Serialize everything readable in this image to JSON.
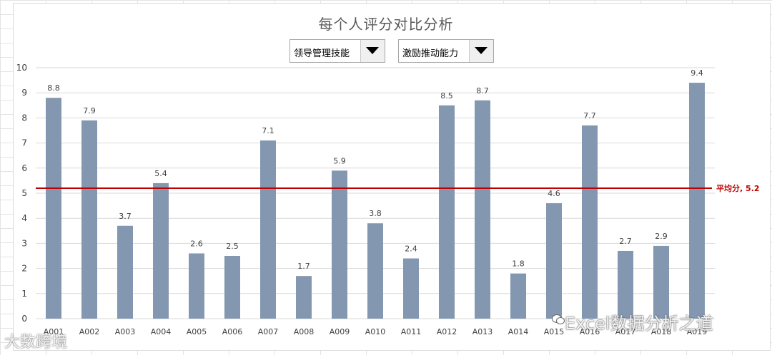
{
  "chart": {
    "title": "每个人评分对比分析"
  },
  "dropdowns": [
    {
      "selected": "领导管理技能"
    },
    {
      "selected": "激励推动能力"
    }
  ],
  "watermarks": {
    "main": "Excel数据分析之道",
    "corner": "大数跨境"
  },
  "colors": {
    "bar": "#8497b0",
    "average_line": "#c00000",
    "title": "#595959",
    "axis_text": "#404040"
  },
  "chart_data": {
    "type": "bar",
    "title": "每个人评分对比分析",
    "xlabel": "",
    "ylabel": "",
    "categories": [
      "A001",
      "A002",
      "A003",
      "A004",
      "A005",
      "A006",
      "A007",
      "A008",
      "A009",
      "A010",
      "A011",
      "A012",
      "A013",
      "A014",
      "A015",
      "A016",
      "A017",
      "A018",
      "A019"
    ],
    "values": [
      8.8,
      7.9,
      3.7,
      5.4,
      2.6,
      2.5,
      7.1,
      1.7,
      5.9,
      3.8,
      2.4,
      8.5,
      8.7,
      1.8,
      4.6,
      7.7,
      2.7,
      2.9,
      9.4
    ],
    "ylim": [
      0,
      10
    ],
    "yticks": [
      0,
      1,
      2,
      3,
      4,
      5,
      6,
      7,
      8,
      9,
      10
    ],
    "grid": true,
    "data_labels": true,
    "average": {
      "label": "平均分, 5.2",
      "value": 5.2
    }
  }
}
